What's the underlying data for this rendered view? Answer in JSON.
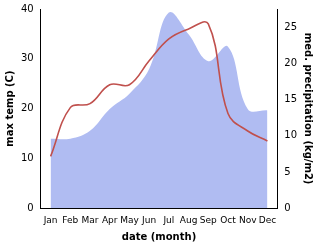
{
  "chart_data": {
    "type": "line",
    "x_label": "date (month)",
    "y_label": "max temp (C)",
    "y2_label": "med. precipitation (kg/m2)",
    "categories": [
      "Jan",
      "Feb",
      "Mar",
      "Apr",
      "May",
      "Jun",
      "Jul",
      "Aug",
      "Sep",
      "Oct",
      "Nov",
      "Dec"
    ],
    "series": [
      {
        "type": "line",
        "color": "#c0504d",
        "axis": "y",
        "values": [
          10.4,
          20.2,
          21.0,
          24.8,
          24.8,
          29.6,
          34.0,
          36.0,
          37.0,
          19.0,
          15.5,
          13.5
        ]
      },
      {
        "type": "area",
        "color": "#b0bcf2",
        "axis": "y2",
        "values": [
          9.6,
          9.6,
          10.7,
          13.7,
          15.8,
          19.2,
          27.0,
          24.0,
          20.3,
          22.3,
          13.7,
          13.5
        ]
      }
    ],
    "ylim": [
      0,
      40
    ],
    "yticks": [
      0,
      10,
      20,
      30,
      40
    ],
    "y2lim": [
      0,
      27.5
    ],
    "y2ticks": [
      0,
      5,
      10,
      15,
      20,
      25
    ],
    "grid": false
  }
}
